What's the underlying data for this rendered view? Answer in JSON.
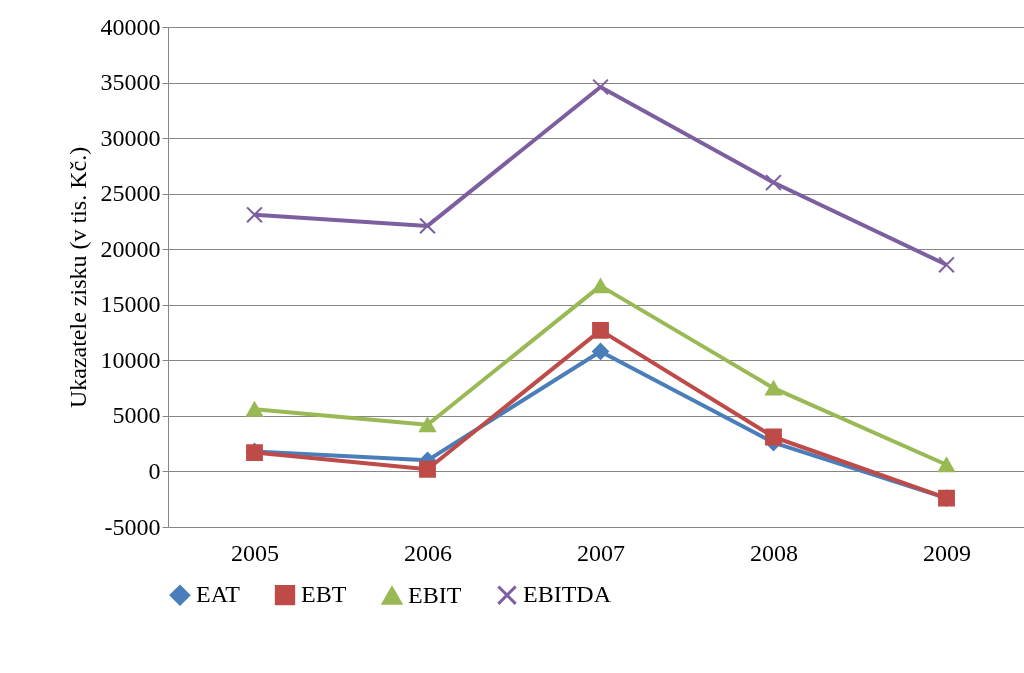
{
  "chart_data": {
    "type": "line",
    "ylabel": "Ukazatele zisku (v tis. Kč.)",
    "categories": [
      "2005",
      "2006",
      "2007",
      "2008",
      "2009"
    ],
    "series": [
      {
        "name": "EAT",
        "color": "#4a7ebb",
        "marker": "diamond",
        "values": [
          1800,
          1000,
          10800,
          2600,
          -2400
        ]
      },
      {
        "name": "EBT",
        "color": "#be4b48",
        "marker": "square",
        "values": [
          1700,
          200,
          12700,
          3100,
          -2400
        ]
      },
      {
        "name": "EBIT",
        "color": "#98b954",
        "marker": "triangle",
        "values": [
          5600,
          4200,
          16700,
          7500,
          600
        ]
      },
      {
        "name": "EBITDA",
        "color": "#7d5fa0",
        "marker": "cross",
        "values": [
          23100,
          22100,
          34600,
          26000,
          18600
        ]
      }
    ],
    "ylim": [
      -5000,
      40000
    ],
    "yticks": [
      -5000,
      0,
      5000,
      10000,
      15000,
      20000,
      25000,
      30000,
      35000,
      40000
    ],
    "grid": "y",
    "legend": "bottom",
    "line_style": "solid"
  }
}
